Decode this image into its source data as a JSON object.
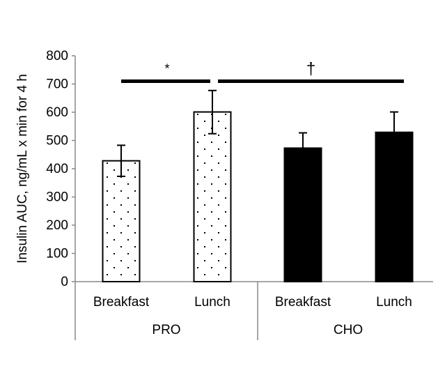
{
  "chart_data": {
    "type": "bar",
    "title": "",
    "ylabel": "Insulin AUC, ng/mL x min for 4 h",
    "xlabel": "",
    "ylim": [
      0,
      800
    ],
    "yticks": [
      0,
      100,
      200,
      300,
      400,
      500,
      600,
      700,
      800
    ],
    "grid": false,
    "groups": [
      {
        "label": "PRO",
        "fill": "dotted",
        "bars": [
          {
            "label": "Breakfast",
            "value": 428,
            "error_upper": 483,
            "error_lower": 373
          },
          {
            "label": "Lunch",
            "value": 601,
            "error_upper": 677,
            "error_lower": 524
          }
        ]
      },
      {
        "label": "CHO",
        "fill": "#000000",
        "bars": [
          {
            "label": "Breakfast",
            "value": 473,
            "error_upper": 527
          },
          {
            "label": "Lunch",
            "value": 529,
            "error_upper": 601
          }
        ]
      }
    ],
    "annotations": [
      {
        "symbol": "*",
        "from": "PRO Breakfast",
        "to": "PRO Lunch",
        "level": 710
      },
      {
        "symbol": "†",
        "from": "PRO Lunch",
        "to": "CHO Lunch",
        "level": 710
      }
    ]
  }
}
